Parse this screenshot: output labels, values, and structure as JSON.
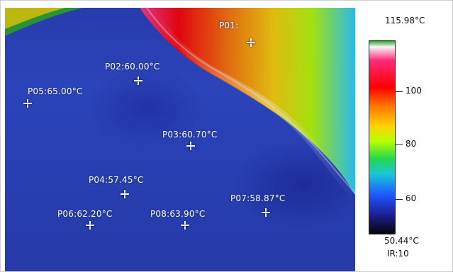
{
  "thermal_image": {
    "spots": [
      {
        "id": "P02",
        "label": "P02:60.00°C"
      },
      {
        "id": "P05",
        "label": "P05:65.00°C"
      },
      {
        "id": "P03",
        "label": "P03:60.70°C"
      },
      {
        "id": "P04",
        "label": "P04:57.45°C"
      },
      {
        "id": "P06",
        "label": "P06:62.20°C"
      },
      {
        "id": "P08",
        "label": "P08:63.90°C"
      },
      {
        "id": "P07",
        "label": "P07:58.87°C"
      },
      {
        "id": "P01",
        "label": "P01:"
      }
    ]
  },
  "scale": {
    "max_label": "115.98°C",
    "min_label": "50.44°C",
    "emissivity_label": "IR:10",
    "tick_labels": [
      "100",
      "80",
      "60"
    ]
  },
  "colors": {
    "background": "#2f49c4",
    "hot_yellow": "#ffd200",
    "hot_red": "#ff0000",
    "hot_magenta": "#ff2a7b"
  }
}
